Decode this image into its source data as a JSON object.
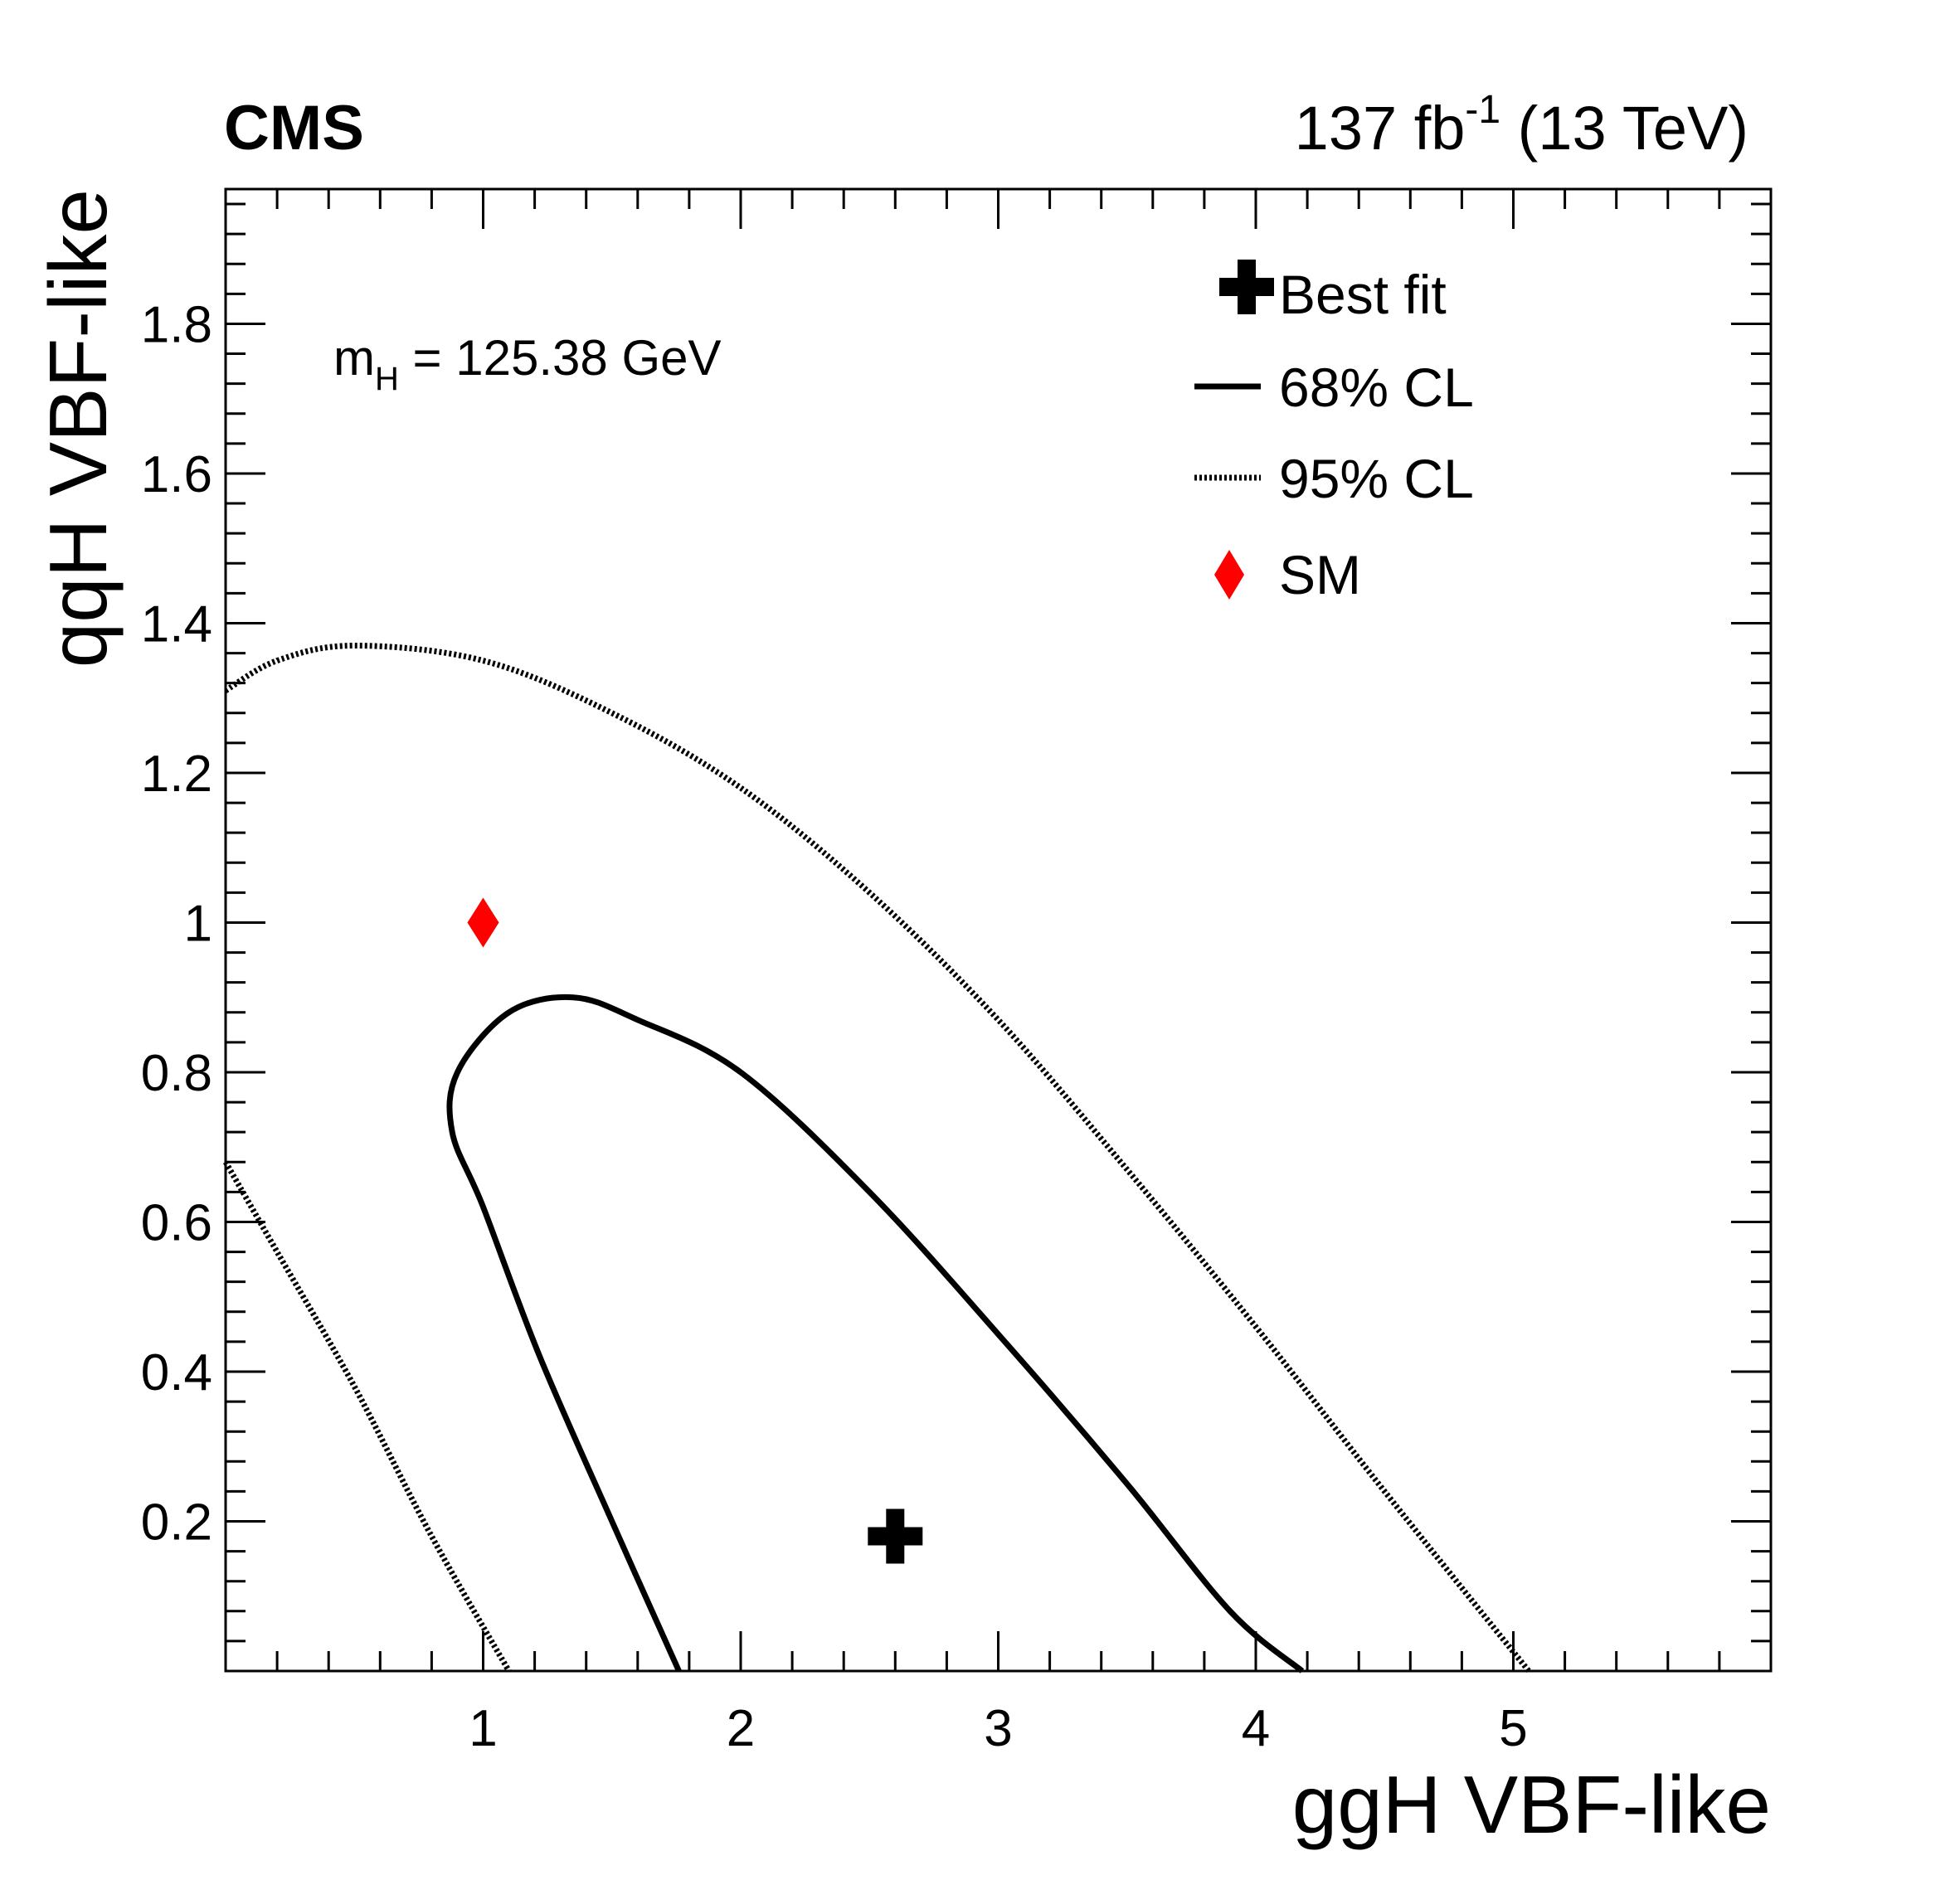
{
  "header": {
    "experiment": "CMS",
    "lumi_value": "137 fb",
    "lumi_sup": "-1",
    "lumi_energy": " (13 TeV)"
  },
  "annotation": {
    "mass_symbol": "m",
    "mass_sub": "H",
    "mass_text": " = 125.38 GeV"
  },
  "chart_data": {
    "type": "contour",
    "xlabel": "ggH VBF-like",
    "ylabel": "qqH VBF-like",
    "xlim": [
      0,
      6.0
    ],
    "ylim": [
      0,
      1.98
    ],
    "x_ticks": [
      {
        "value": 1,
        "label": "1"
      },
      {
        "value": 2,
        "label": "2"
      },
      {
        "value": 3,
        "label": "3"
      },
      {
        "value": 4,
        "label": "4"
      },
      {
        "value": 5,
        "label": "5"
      }
    ],
    "y_ticks": [
      {
        "value": 0.2,
        "label": "0.2"
      },
      {
        "value": 0.4,
        "label": "0.4"
      },
      {
        "value": 0.6,
        "label": "0.6"
      },
      {
        "value": 0.8,
        "label": "0.8"
      },
      {
        "value": 1.0,
        "label": "1"
      },
      {
        "value": 1.2,
        "label": "1.2"
      },
      {
        "value": 1.4,
        "label": "1.4"
      },
      {
        "value": 1.6,
        "label": "1.6"
      },
      {
        "value": 1.8,
        "label": "1.8"
      }
    ],
    "best_fit": {
      "name": "Best fit",
      "x": 2.6,
      "y": 0.18,
      "color": "#000000"
    },
    "sm": {
      "name": "SM",
      "x": 1.0,
      "y": 1.0,
      "color": "#ff0000"
    },
    "cl68": {
      "name": "68% CL",
      "style": "solid",
      "color": "#000000",
      "points": [
        [
          1.76,
          0.0
        ],
        [
          1.5,
          0.2
        ],
        [
          1.22,
          0.42
        ],
        [
          1.0,
          0.62
        ],
        [
          0.88,
          0.72
        ],
        [
          0.9,
          0.8
        ],
        [
          1.1,
          0.88
        ],
        [
          1.35,
          0.9
        ],
        [
          1.6,
          0.87
        ],
        [
          2.0,
          0.8
        ],
        [
          2.5,
          0.64
        ],
        [
          3.0,
          0.45
        ],
        [
          3.5,
          0.25
        ],
        [
          3.9,
          0.08
        ],
        [
          4.18,
          0.0
        ]
      ]
    },
    "cl95": {
      "name": "95% CL",
      "style": "dotted",
      "color": "#000000",
      "segments": [
        [
          [
            0.0,
            1.31
          ],
          [
            0.2,
            1.35
          ],
          [
            0.5,
            1.37
          ],
          [
            1.0,
            1.35
          ],
          [
            1.5,
            1.28
          ],
          [
            2.0,
            1.18
          ],
          [
            2.5,
            1.04
          ],
          [
            3.0,
            0.87
          ],
          [
            3.5,
            0.67
          ],
          [
            4.0,
            0.46
          ],
          [
            4.5,
            0.24
          ],
          [
            5.06,
            0.0
          ]
        ],
        [
          [
            0.0,
            0.68
          ],
          [
            0.2,
            0.56
          ],
          [
            0.5,
            0.38
          ],
          [
            0.8,
            0.18
          ],
          [
            1.1,
            0.0
          ]
        ]
      ]
    },
    "legend": {
      "position": "top-right",
      "entries": [
        {
          "label": "Best fit",
          "marker": "cross"
        },
        {
          "label": "68% CL",
          "marker": "solid-line"
        },
        {
          "label": "95% CL",
          "marker": "dotted-line"
        },
        {
          "label": "SM",
          "marker": "diamond"
        }
      ]
    },
    "grid": false
  }
}
